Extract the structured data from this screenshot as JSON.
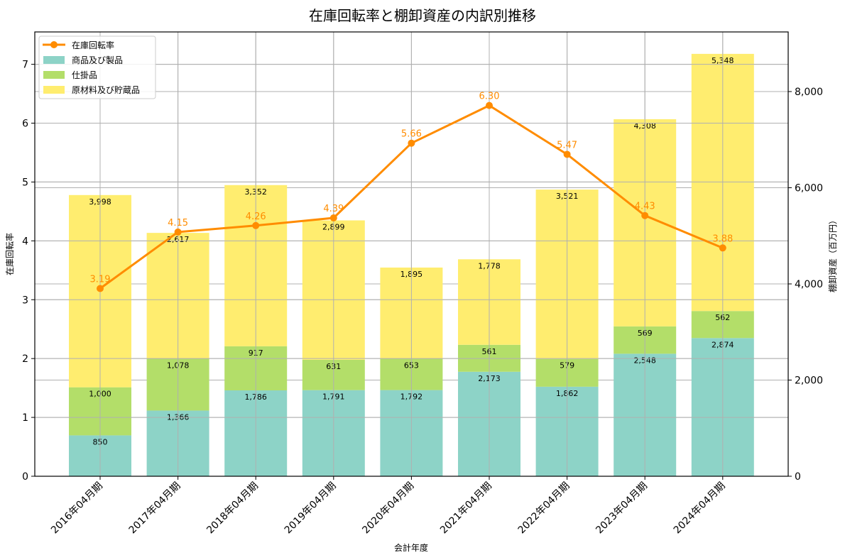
{
  "chart_data": {
    "type": "bar",
    "subtype": "stacked-bar-with-line-dual-axis",
    "title": "在庫回転率と棚卸資産の内訳別推移",
    "xlabel": "会計年度",
    "ylabel_left": "在庫回転率",
    "ylabel_right": "棚卸資産（百万円）",
    "categories": [
      "2016年04月期",
      "2017年04月期",
      "2018年04月期",
      "2019年04月期",
      "2020年04月期",
      "2021年04月期",
      "2022年04月期",
      "2023年04月期",
      "2024年04月期"
    ],
    "series": [
      {
        "name": "商品及び製品",
        "axis": "right",
        "kind": "bar",
        "color": "#8dd3c7",
        "values": [
          850,
          1366,
          1786,
          1791,
          1792,
          2173,
          1862,
          2548,
          2874
        ]
      },
      {
        "name": "仕掛品",
        "axis": "right",
        "kind": "bar",
        "color": "#b3de69",
        "values": [
          1000,
          1078,
          917,
          631,
          653,
          561,
          579,
          569,
          562
        ]
      },
      {
        "name": "原材料及び貯蔵品",
        "axis": "right",
        "kind": "bar",
        "color": "#ffed6f",
        "values": [
          3998,
          2617,
          3352,
          2899,
          1895,
          1778,
          3521,
          4308,
          5348
        ]
      },
      {
        "name": "在庫回転率",
        "axis": "left",
        "kind": "line",
        "color": "#ff8c00",
        "values": [
          3.19,
          4.15,
          4.26,
          4.39,
          5.66,
          6.3,
          5.47,
          4.43,
          3.88
        ],
        "labels": [
          "3.19",
          "4.15",
          "4.26",
          "4.39",
          "5.66",
          "6.30",
          "5.47",
          "4.43",
          "3.88"
        ]
      }
    ],
    "ylim_left": [
      0,
      7.55
    ],
    "ylim_right": [
      0,
      9240
    ],
    "yticks_left": [
      0,
      1,
      2,
      3,
      4,
      5,
      6,
      7
    ],
    "yticks_right": [
      0,
      2000,
      4000,
      6000,
      8000
    ],
    "yticklabels_right": [
      "0",
      "2,000",
      "4,000",
      "6,000",
      "8,000"
    ],
    "grid": true,
    "legend_position": "upper left",
    "legend": [
      "在庫回転率",
      "商品及び製品",
      "仕掛品",
      "原材料及び貯蔵品"
    ]
  }
}
